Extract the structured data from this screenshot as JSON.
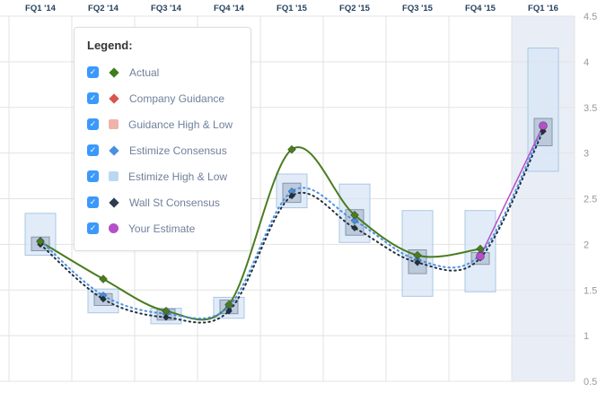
{
  "legend": {
    "title": "Legend:",
    "check_glyph": "✓",
    "checkbox_color": "#3b99fc",
    "items": [
      {
        "label": "Actual",
        "marker": "diamond",
        "color": "#3f7d1e",
        "checked": true
      },
      {
        "label": "Company Guidance",
        "marker": "diamond",
        "color": "#d9534f",
        "checked": true
      },
      {
        "label": "Guidance High & Low",
        "marker": "square",
        "color": "#f0b3ab",
        "checked": true
      },
      {
        "label": "Estimize Consensus",
        "marker": "diamond",
        "color": "#4a90e2",
        "checked": true
      },
      {
        "label": "Estimize High & Low",
        "marker": "square",
        "color": "#bcd8f0",
        "checked": true
      },
      {
        "label": "Wall St Consensus",
        "marker": "diamond",
        "color": "#2d3e50",
        "checked": true
      },
      {
        "label": "Your Estimate",
        "marker": "circle",
        "color": "#b550c8",
        "checked": true
      }
    ]
  },
  "chart_data": {
    "type": "line",
    "title": "",
    "xlabel": "",
    "ylabel": "",
    "categories": [
      "FQ1 '14",
      "FQ2 '14",
      "FQ3 '14",
      "FQ4 '14",
      "FQ1 '15",
      "FQ2 '15",
      "FQ3 '15",
      "FQ4 '15",
      "FQ1 '16"
    ],
    "ylim": [
      0.5,
      4.5
    ],
    "y_ticks": [
      "4.5",
      "4",
      "3.5",
      "3",
      "2.5",
      "2",
      "1.5",
      "1",
      "0.5"
    ],
    "highlight_category": "FQ1 '16",
    "legend_position": "top-left",
    "grid": true,
    "series": [
      {
        "name": "Actual",
        "color": "#4a7c1f",
        "style": "solid",
        "marker": "diamond",
        "width": 2,
        "values": [
          2.03,
          1.62,
          1.27,
          1.34,
          3.04,
          2.32,
          1.88,
          1.95,
          null
        ]
      },
      {
        "name": "Estimize Consensus",
        "color": "#4a90e2",
        "style": "dotted",
        "marker": "diamond",
        "width": 2,
        "values": [
          2.04,
          1.44,
          1.24,
          1.32,
          2.58,
          2.26,
          1.83,
          1.89,
          3.28
        ]
      },
      {
        "name": "Wall St Consensus",
        "color": "#22313f",
        "style": "dotted",
        "marker": "diamond",
        "width": 2,
        "values": [
          2.0,
          1.4,
          1.2,
          1.27,
          2.53,
          2.18,
          1.8,
          1.85,
          3.24
        ]
      },
      {
        "name": "Your Estimate",
        "color": "#b550c8",
        "style": "solid",
        "marker": "circle",
        "width": 1.5,
        "values": [
          null,
          null,
          null,
          null,
          null,
          null,
          null,
          1.87,
          3.3
        ]
      }
    ],
    "ranges": {
      "estimize_high_low": [
        [
          1.88,
          2.34
        ],
        [
          1.25,
          1.51
        ],
        [
          1.13,
          1.3
        ],
        [
          1.19,
          1.42
        ],
        [
          2.4,
          2.77
        ],
        [
          2.02,
          2.66
        ],
        [
          1.43,
          2.37
        ],
        [
          1.48,
          2.37
        ],
        [
          2.8,
          4.15
        ]
      ],
      "consensus_box": [
        [
          1.93,
          2.08
        ],
        [
          1.33,
          1.46
        ],
        [
          1.17,
          1.29
        ],
        [
          1.24,
          1.39
        ],
        [
          2.46,
          2.67
        ],
        [
          2.1,
          2.38
        ],
        [
          1.68,
          1.94
        ],
        [
          1.78,
          1.91
        ],
        [
          3.08,
          3.38
        ]
      ]
    },
    "colors": {
      "estimize_range_fill": "#d8e6f5",
      "estimize_range_stroke": "#a9c7e4",
      "consensus_box_fill": "#a9b8cc",
      "consensus_box_stroke": "#8496ad",
      "highlight_band": "#e9eef6",
      "grid": "#e3e3e3",
      "x_label_color": "#26425f",
      "y_label_color": "#999999"
    }
  }
}
